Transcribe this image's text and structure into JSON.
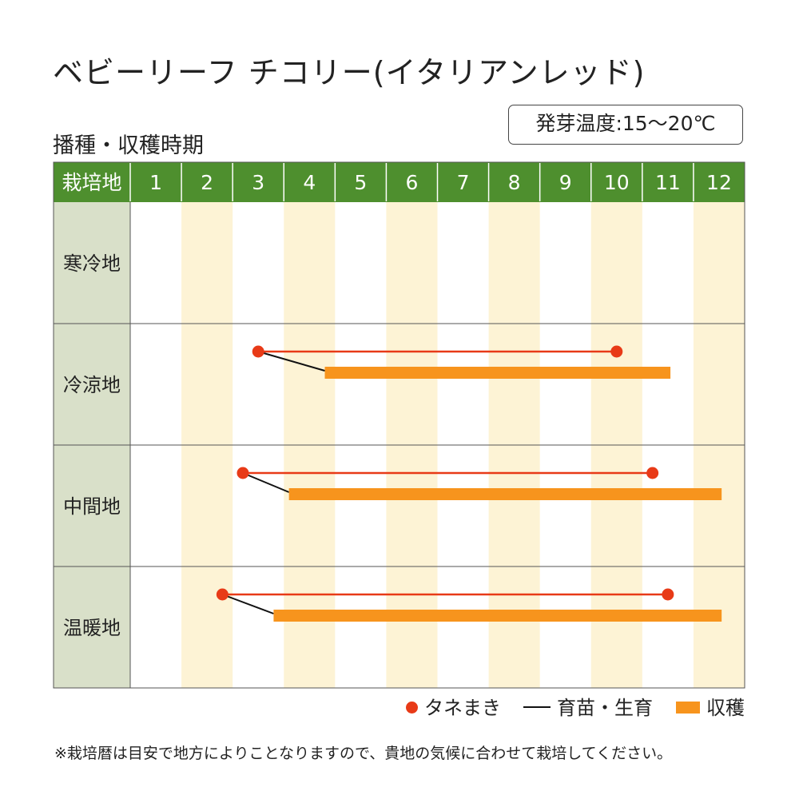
{
  "title": "ベビーリーフ チコリー(イタリアンレッド)",
  "subtitle": "播種・収穫時期",
  "germination_temp": "発芽温度:15〜20℃",
  "header_label": "栽培地",
  "legend": {
    "sowing": "タネまき",
    "nursery": "育苗・生育",
    "harvest": "収穫"
  },
  "footnote": "※栽培暦は目安で地方によりことなりますので、貴地の気候に合わせて栽培してください。",
  "colors": {
    "header_bg": "#4e8f2e",
    "row_label_bg": "#d9e0c9",
    "stripe": "#fdf3d5",
    "sowing": "#e83a17",
    "harvest": "#f7941d",
    "nursery": "#111111"
  },
  "chart_data": {
    "type": "gantt",
    "x_unit": "month",
    "months": [
      "1",
      "2",
      "3",
      "4",
      "5",
      "6",
      "7",
      "8",
      "9",
      "10",
      "11",
      "12"
    ],
    "rows": [
      {
        "region": "寒冷地",
        "sowing": null,
        "harvest": null
      },
      {
        "region": "冷涼地",
        "sowing": [
          3.5,
          10.5
        ],
        "harvest": [
          4.8,
          11.55
        ]
      },
      {
        "region": "中間地",
        "sowing": [
          3.2,
          11.2
        ],
        "harvest": [
          4.1,
          12.55
        ]
      },
      {
        "region": "温暖地",
        "sowing": [
          2.8,
          11.5
        ],
        "harvest": [
          3.8,
          12.55
        ]
      }
    ]
  }
}
